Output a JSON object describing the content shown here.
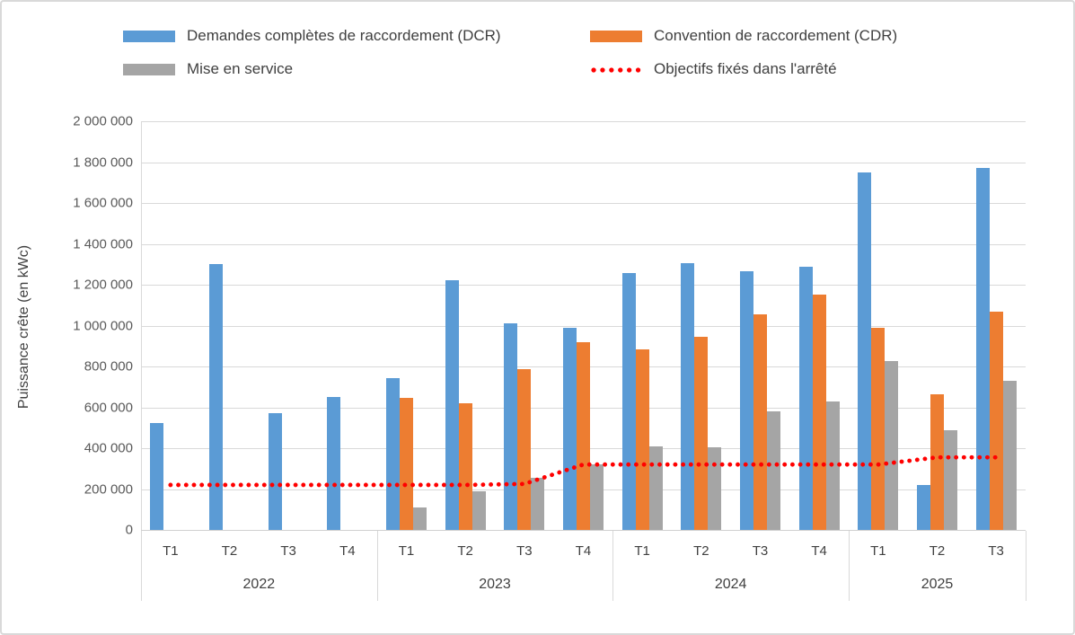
{
  "chart": {
    "y_axis_title": "Puissance crête (en kWc)",
    "y_ticks": [
      {
        "value": 0,
        "label": "0"
      },
      {
        "value": 200000,
        "label": "200 000"
      },
      {
        "value": 400000,
        "label": "400 000"
      },
      {
        "value": 600000,
        "label": "600 000"
      },
      {
        "value": 800000,
        "label": "800 000"
      },
      {
        "value": 1000000,
        "label": "1 000 000"
      },
      {
        "value": 1200000,
        "label": "1 200 000"
      },
      {
        "value": 1400000,
        "label": "1 400 000"
      },
      {
        "value": 1600000,
        "label": "1 600 000"
      },
      {
        "value": 1800000,
        "label": "1 800 000"
      },
      {
        "value": 2000000,
        "label": "2 000 000"
      }
    ]
  },
  "chart_data": {
    "type": "bar",
    "title": "",
    "xlabel": "",
    "ylabel": "Puissance crête (en kWc)",
    "ylim": [
      0,
      2000000
    ],
    "y_tick_step": 200000,
    "grid": true,
    "legend_position": "top",
    "year_groups": [
      {
        "label": "2022",
        "quarters": [
          "T1",
          "T2",
          "T3",
          "T4"
        ]
      },
      {
        "label": "2023",
        "quarters": [
          "T1",
          "T2",
          "T3",
          "T4"
        ]
      },
      {
        "label": "2024",
        "quarters": [
          "T1",
          "T2",
          "T3",
          "T4"
        ]
      },
      {
        "label": "2025",
        "quarters": [
          "T1",
          "T2",
          "T3"
        ]
      }
    ],
    "series": [
      {
        "name": "Demandes complètes de raccordement (DCR)",
        "type": "bar",
        "color": "#5B9BD5",
        "values": [
          525000,
          1300000,
          570000,
          650000,
          745000,
          1220000,
          1010000,
          990000,
          1255000,
          1305000,
          1265000,
          1290000,
          1750000,
          220000,
          1770000
        ]
      },
      {
        "name": "Convention de raccordement (CDR)",
        "type": "bar",
        "color": "#ED7D31",
        "values": [
          null,
          null,
          null,
          null,
          645000,
          620000,
          785000,
          920000,
          885000,
          945000,
          1055000,
          1150000,
          990000,
          665000,
          1070000
        ]
      },
      {
        "name": "Mise en service",
        "type": "bar",
        "color": "#A5A5A5",
        "values": [
          null,
          null,
          null,
          null,
          110000,
          190000,
          255000,
          320000,
          410000,
          405000,
          580000,
          630000,
          825000,
          490000,
          730000
        ]
      },
      {
        "name": "Objectifs fixés dans l'arrêté",
        "type": "dotted-line",
        "color": "#FF0000",
        "values": [
          220000,
          220000,
          220000,
          220000,
          220000,
          220000,
          225000,
          320000,
          320000,
          320000,
          320000,
          320000,
          320000,
          355000,
          355000
        ]
      }
    ]
  }
}
